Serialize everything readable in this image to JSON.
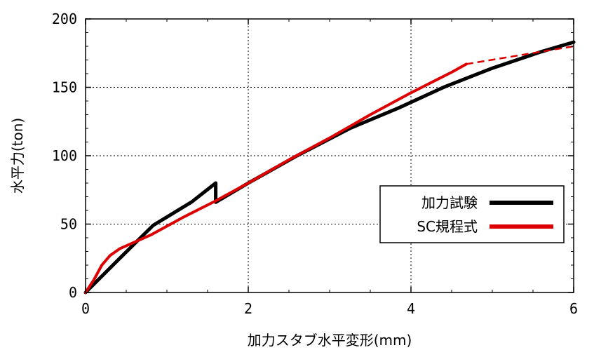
{
  "chart_data": {
    "type": "line",
    "xlabel": "加力スタブ水平変形(mm)",
    "ylabel": "水平力(ton)",
    "xlim": [
      0,
      6
    ],
    "ylim": [
      0,
      200
    ],
    "x_ticks": [
      0,
      2,
      4,
      6
    ],
    "y_ticks": [
      0,
      50,
      100,
      150,
      200
    ],
    "x_tick_labels": [
      "0",
      "2",
      "4",
      "6"
    ],
    "y_tick_labels": [
      "0",
      "50",
      "100",
      "150",
      "200"
    ],
    "grid": true,
    "legend_position": "lower-right",
    "series": [
      {
        "name": "加力試験",
        "color": "#000000",
        "points": [
          [
            0,
            0
          ],
          [
            0.42,
            25
          ],
          [
            0.83,
            49
          ],
          [
            1.3,
            66
          ],
          [
            1.6,
            80
          ],
          [
            1.6,
            66
          ],
          [
            2.0,
            80
          ],
          [
            2.6,
            100
          ],
          [
            3.25,
            120
          ],
          [
            3.85,
            135
          ],
          [
            4.4,
            150
          ],
          [
            5.0,
            164
          ],
          [
            5.6,
            176
          ],
          [
            6.0,
            183
          ]
        ]
      },
      {
        "name": "SC規程式",
        "color": "#dd0000",
        "points": [
          [
            0,
            0
          ],
          [
            0.1,
            9
          ],
          [
            0.2,
            20
          ],
          [
            0.3,
            27
          ],
          [
            0.42,
            32
          ],
          [
            0.8,
            42
          ],
          [
            1.2,
            55
          ],
          [
            1.6,
            67
          ],
          [
            2.0,
            80
          ],
          [
            2.5,
            97
          ],
          [
            3.0,
            113
          ],
          [
            3.5,
            130
          ],
          [
            4.0,
            146
          ],
          [
            4.5,
            161
          ],
          [
            4.68,
            167
          ]
        ],
        "dashed_points": [
          [
            4.68,
            167
          ],
          [
            6.0,
            180
          ]
        ]
      }
    ]
  }
}
